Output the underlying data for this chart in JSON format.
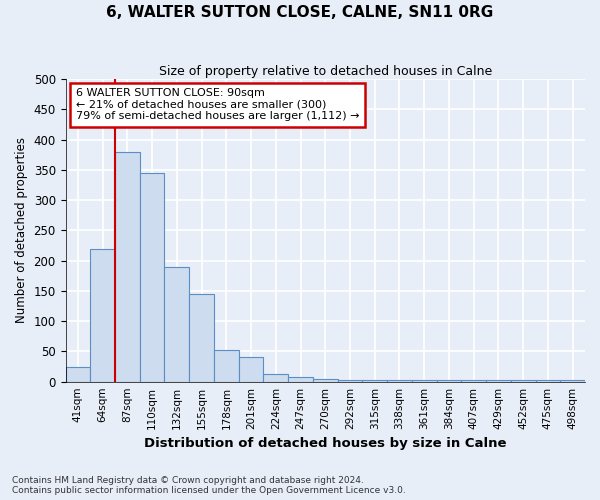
{
  "title": "6, WALTER SUTTON CLOSE, CALNE, SN11 0RG",
  "subtitle": "Size of property relative to detached houses in Calne",
  "xlabel": "Distribution of detached houses by size in Calne",
  "ylabel": "Number of detached properties",
  "categories": [
    "41sqm",
    "64sqm",
    "87sqm",
    "110sqm",
    "132sqm",
    "155sqm",
    "178sqm",
    "201sqm",
    "224sqm",
    "247sqm",
    "270sqm",
    "292sqm",
    "315sqm",
    "338sqm",
    "361sqm",
    "384sqm",
    "407sqm",
    "429sqm",
    "452sqm",
    "475sqm",
    "498sqm"
  ],
  "values": [
    25,
    220,
    380,
    345,
    190,
    145,
    53,
    40,
    12,
    8,
    5,
    3,
    2,
    2,
    2,
    2,
    2,
    2,
    2,
    2,
    2
  ],
  "bar_color": "#cddcee",
  "bar_edge_color": "#5b8ec4",
  "red_line_x": 1.5,
  "annotation_title": "6 WALTER SUTTON CLOSE: 90sqm",
  "annotation_line1": "← 21% of detached houses are smaller (300)",
  "annotation_line2": "79% of semi-detached houses are larger (1,112) →",
  "annotation_box_color": "#ffffff",
  "annotation_box_edge": "#cc0000",
  "footer1": "Contains HM Land Registry data © Crown copyright and database right 2024.",
  "footer2": "Contains public sector information licensed under the Open Government Licence v3.0.",
  "ylim": [
    0,
    500
  ],
  "yticks": [
    0,
    50,
    100,
    150,
    200,
    250,
    300,
    350,
    400,
    450,
    500
  ],
  "background_color": "#e8eef7",
  "grid_color": "#ffffff"
}
